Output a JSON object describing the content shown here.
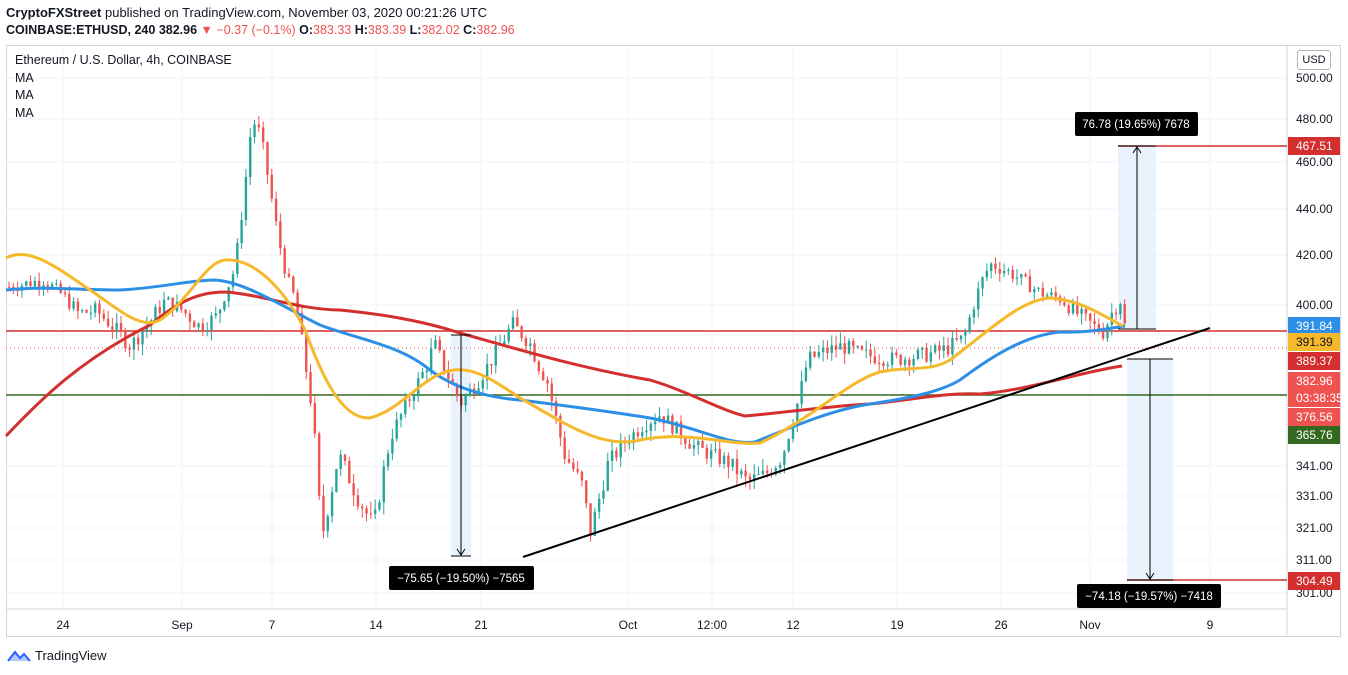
{
  "header": {
    "author": "CryptoFXStreet",
    "published_text": "published on TradingView.com, November 03, 2020 00:21:26 UTC",
    "symbol": "COINBASE:ETHUSD, 240",
    "last": "382.96",
    "change": "−0.37 (−0.1%)",
    "o_label": "O:",
    "o": "383.33",
    "h_label": "H:",
    "h": "383.39",
    "l_label": "L:",
    "l": "382.02",
    "c_label": "C:",
    "c": "382.96"
  },
  "legend": {
    "title": "Ethereum / U.S. Dollar, 4h, COINBASE",
    "indicators": [
      "MA",
      "MA",
      "MA"
    ]
  },
  "currency_button": "USD",
  "branding": "TradingView",
  "colors": {
    "up": "#26a69a",
    "down": "#ef5350",
    "ma_fast": "#f6b92b",
    "ma_mid": "#2d8fe6",
    "ma_slow": "#d32f2f",
    "resistance": "#d32f2f",
    "support": "#33691e",
    "trend": "#000000"
  },
  "chart_data": {
    "type": "candlestick",
    "title": "Ethereum / U.S. Dollar, 4h, COINBASE",
    "x_ticks": [
      "24",
      "Sep",
      "7",
      "14",
      "21",
      "Oct",
      "12:00",
      "12",
      "19",
      "26",
      "Nov",
      "9"
    ],
    "y_ticks": [
      "500.00",
      "480.00",
      "460.00",
      "440.00",
      "420.00",
      "400.00",
      "341.00",
      "331.00",
      "321.00",
      "311.00",
      "301.00"
    ],
    "price_tags": [
      {
        "value": "467.51",
        "color": "#d32f2f"
      },
      {
        "value": "391.84",
        "color": "#2d8fe6"
      },
      {
        "value": "391.39",
        "color": "#f6b92b"
      },
      {
        "value": "389.37",
        "color": "#d32f2f"
      },
      {
        "value": "382.96",
        "color": "#ef5350"
      },
      {
        "value": "03:38:35",
        "color": "#ef5350"
      },
      {
        "value": "376.56",
        "color": "#ef5350"
      },
      {
        "value": "365.76",
        "color": "#33691e"
      },
      {
        "value": "304.49",
        "color": "#d32f2f"
      }
    ],
    "horizontal_levels": [
      {
        "name": "resistance",
        "value": 389.37
      },
      {
        "name": "support",
        "value": 365.76
      },
      {
        "name": "upper-target",
        "value": 467.51
      },
      {
        "name": "lower-target",
        "value": 304.49
      }
    ],
    "measurements": [
      {
        "label": "−75.65 (−19.50%) −7565"
      },
      {
        "label": "76.78 (19.65%) 7678"
      },
      {
        "label": "−74.18 (−19.57%) −7418"
      }
    ],
    "close_path": [
      [
        0,
        408
      ],
      [
        4,
        411
      ],
      [
        6,
        405
      ],
      [
        8,
        397
      ],
      [
        10,
        398
      ],
      [
        12,
        392
      ],
      [
        14,
        385
      ],
      [
        16,
        393
      ],
      [
        18,
        402
      ],
      [
        20,
        398
      ],
      [
        22,
        392
      ],
      [
        24,
        396
      ],
      [
        26,
        416
      ],
      [
        27,
        446
      ],
      [
        28,
        482
      ],
      [
        29,
        475
      ],
      [
        31,
        430
      ],
      [
        32,
        412
      ],
      [
        33,
        402
      ],
      [
        35,
        360
      ],
      [
        36,
        318
      ],
      [
        38,
        345
      ],
      [
        40,
        332
      ],
      [
        42,
        322
      ],
      [
        44,
        352
      ],
      [
        46,
        365
      ],
      [
        48,
        377
      ],
      [
        49,
        386
      ],
      [
        50,
        378
      ],
      [
        52,
        364
      ],
      [
        54,
        372
      ],
      [
        56,
        382
      ],
      [
        58,
        393
      ],
      [
        60,
        386
      ],
      [
        61,
        378
      ],
      [
        62,
        372
      ],
      [
        64,
        345
      ],
      [
        66,
        335
      ],
      [
        67,
        320
      ],
      [
        69,
        342
      ],
      [
        71,
        350
      ],
      [
        73,
        356
      ],
      [
        75,
        360
      ],
      [
        77,
        354
      ],
      [
        79,
        348
      ],
      [
        81,
        345
      ],
      [
        83,
        342
      ],
      [
        85,
        336
      ],
      [
        87,
        338
      ],
      [
        89,
        344
      ],
      [
        91,
        366
      ],
      [
        92,
        380
      ],
      [
        94,
        383
      ],
      [
        96,
        385
      ],
      [
        98,
        382
      ],
      [
        100,
        381
      ],
      [
        102,
        380
      ],
      [
        104,
        381
      ],
      [
        106,
        382
      ],
      [
        108,
        384
      ],
      [
        110,
        388
      ],
      [
        112,
        410
      ],
      [
        113,
        418
      ],
      [
        115,
        415
      ],
      [
        117,
        410
      ],
      [
        119,
        405
      ],
      [
        121,
        403
      ],
      [
        123,
        397
      ],
      [
        125,
        392
      ],
      [
        126,
        390
      ],
      [
        127,
        397
      ],
      [
        128,
        402
      ],
      [
        129,
        383
      ]
    ]
  }
}
